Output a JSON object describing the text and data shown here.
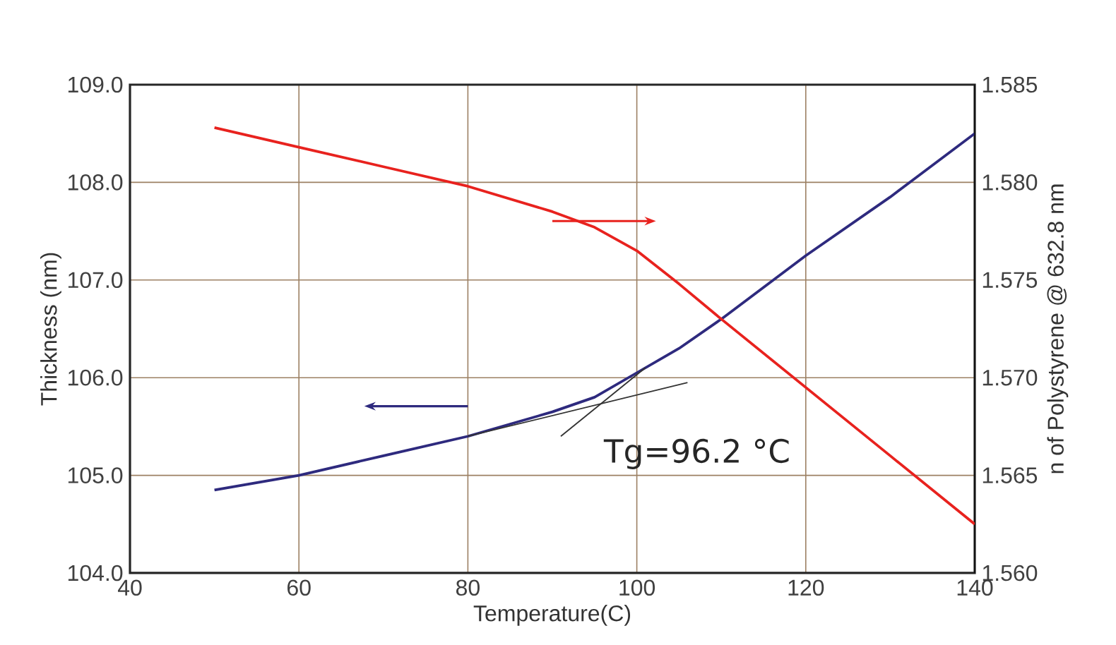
{
  "chart_data": {
    "type": "line",
    "xlabel": "Temperature(C)",
    "ylabel": "Thickness (nm)",
    "y2label": "n of Polystyrene @ 632.8 nm",
    "xlim": [
      40,
      140
    ],
    "xticks": [
      40,
      60,
      80,
      100,
      120,
      140
    ],
    "ylim": [
      104,
      109
    ],
    "yticks": [
      {
        "value": 104,
        "label": "104.0"
      },
      {
        "value": 105,
        "label": "105.0"
      },
      {
        "value": 106,
        "label": "106.0"
      },
      {
        "value": 107,
        "label": "107.0"
      },
      {
        "value": 108,
        "label": "108.0"
      },
      {
        "value": 109,
        "label": "109.0"
      }
    ],
    "y2lim": [
      1.56,
      1.585
    ],
    "y2ticks": [
      {
        "value": 1.56,
        "label": "1.560"
      },
      {
        "value": 1.565,
        "label": "1.565"
      },
      {
        "value": 1.57,
        "label": "1.570"
      },
      {
        "value": 1.575,
        "label": "1.575"
      },
      {
        "value": 1.58,
        "label": "1.580"
      },
      {
        "value": 1.585,
        "label": "1.585"
      }
    ],
    "grid": true,
    "x": [
      50,
      60,
      70,
      80,
      90,
      95,
      100,
      105,
      110,
      120,
      130,
      140
    ],
    "series": [
      {
        "color": "#2e2a7e",
        "values": [
          104.85,
          105.0,
          105.2,
          105.4,
          105.65,
          105.8,
          106.05,
          106.3,
          106.6,
          107.25,
          107.85,
          108.5
        ]
      },
      {
        "color": "#e8221e",
        "axis": "y2",
        "values": [
          1.5828,
          1.5818,
          1.5808,
          1.5798,
          1.5785,
          1.5777,
          1.5765,
          1.5748,
          1.573,
          1.5695,
          1.566,
          1.5625
        ]
      },
      {
        "color": "#333333",
        "x": [
          80,
          106
        ],
        "values": [
          105.4,
          105.95
        ]
      },
      {
        "color": "#333333",
        "x": [
          91,
          101
        ],
        "values": [
          105.4,
          106.1
        ]
      }
    ],
    "annotations": [
      {
        "text": "Tg=96.2 °C",
        "x": 96.2,
        "y": 105.75
      }
    ]
  }
}
